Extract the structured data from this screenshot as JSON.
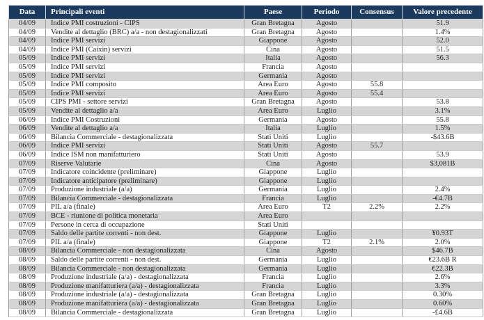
{
  "table": {
    "headers": [
      "Data",
      "Principali eventi",
      "Paese",
      "Periodo",
      "Consensus",
      "Valore precedente"
    ],
    "rows": [
      [
        "04/09",
        "Indice PMI costruzioni - CIPS",
        "Gran Bretagna",
        "Agosto",
        "",
        "51.9"
      ],
      [
        "04/09",
        "Vendite al dettaglio (BRC) a/a - non destagionalizzati",
        "Gran Bretagna",
        "Agosto",
        "",
        "1.4%"
      ],
      [
        "04/09",
        "Indice PMI servizi",
        "Giappone",
        "Agosto",
        "",
        "52.0"
      ],
      [
        "04/09",
        "Indice PMI (Caixin) servizi",
        "Cina",
        "Agosto",
        "",
        "51.5"
      ],
      [
        "05/09",
        "Indice PMI servizi",
        "Italia",
        "Agosto",
        "",
        "56.3"
      ],
      [
        "05/09",
        "Indice PMI servizi",
        "Francia",
        "Agosto",
        "",
        ""
      ],
      [
        "05/09",
        "Indice PMI servizi",
        "Germania",
        "Agosto",
        "",
        ""
      ],
      [
        "05/09",
        "Indice PMI composito",
        "Area Euro",
        "Agosto",
        "55.8",
        ""
      ],
      [
        "05/09",
        "Indice PMI servizi",
        "Area Euro",
        "Agosto",
        "55.4",
        ""
      ],
      [
        "05/09",
        "CIPS PMI - settore servizi",
        "Gran Bretagna",
        "Agosto",
        "",
        "53.8"
      ],
      [
        "05/09",
        "Vendite al dettaglio a/a",
        "Area Euro",
        "Luglio",
        "",
        "3.1%"
      ],
      [
        "06/09",
        "Indice PMI Costruzioni",
        "Germania",
        "Agosto",
        "",
        "55.8"
      ],
      [
        "06/09",
        "Vendite al dettaglio a/a",
        "Italia",
        "Luglio",
        "",
        "1.5%"
      ],
      [
        "06/09",
        "Bilancia Commerciale - destagionalizzata",
        "Stati Uniti",
        "Luglio",
        "",
        "-$43.6B"
      ],
      [
        "06/09",
        "Indice PMI servizi",
        "Stati Uniti",
        "Agosto",
        "55.7",
        ""
      ],
      [
        "06/09",
        "Indice ISM non manifatturiero",
        "Stati Uniti",
        "Agosto",
        "",
        "53.9"
      ],
      [
        "07/09",
        "Riserve Valutarie",
        "Cina",
        "Agosto",
        "",
        "$3,081B"
      ],
      [
        "07/09",
        "Indicatore coincidente (preliminare)",
        "Giappone",
        "Luglio",
        "",
        ""
      ],
      [
        "07/09",
        "Indicatore anticipatore (preliminare)",
        "Giappone",
        "Luglio",
        "",
        ""
      ],
      [
        "07/09",
        "Produzione industriale (a/a)",
        "Germania",
        "Luglio",
        "",
        "2.4%"
      ],
      [
        "07/09",
        "Bilancia Commerciale - destagionalizzata",
        "Francia",
        "Luglio",
        "",
        "-€4.7B"
      ],
      [
        "07/09",
        "PIL a/a (finale)",
        "Area Euro",
        "T2",
        "2.2%",
        "2.2%"
      ],
      [
        "07/09",
        "BCE - riunione di politica monetaria",
        "Area Euro",
        "",
        "",
        ""
      ],
      [
        "07/09",
        "Persone in cerca di occupazione",
        "Stati Uniti",
        "",
        "",
        ""
      ],
      [
        "07/09",
        "Saldo delle partite correnti - non dest.",
        "Giappone",
        "Luglio",
        "",
        "¥0.93T"
      ],
      [
        "07/09",
        "PIL a/a (finale)",
        "Giappone",
        "T2",
        "2.1%",
        "2.0%"
      ],
      [
        "08/09",
        "Bilancia Commerciale - non destagionalizzata",
        "Cina",
        "Agosto",
        "",
        "$46.7B"
      ],
      [
        "08/09",
        "Saldo delle partite correnti - non dest.",
        "Germania",
        "Luglio",
        "",
        "€23.6B R"
      ],
      [
        "08/09",
        "Bilancia Commerciale - non destagionalizzata",
        "Germania",
        "Luglio",
        "",
        "€22.3B"
      ],
      [
        "08/09",
        "Produzione industriale (a/a) - destagionalizzata",
        "Francia",
        "Luglio",
        "",
        "2.6%"
      ],
      [
        "08/09",
        "Produzione manifatturiera (a/a) - destagionalizzata",
        "Francia",
        "Luglio",
        "",
        "3.3%"
      ],
      [
        "08/09",
        "Produzione industriale (a/a) - destagionalizzata",
        "Gran Bretagna",
        "Luglio",
        "",
        "0.30%"
      ],
      [
        "08/09",
        "Produzione manifatturiera (a/a) - destagionalizzata",
        "Gran Bretagna",
        "Luglio",
        "",
        "0.60%"
      ],
      [
        "08/09",
        "Bilancia Commerciale - destagionalizzata",
        "Gran Bretagna",
        "Luglio",
        "",
        "-£4.6B"
      ]
    ]
  },
  "colors": {
    "header_bg": "#1c3a5e",
    "header_text": "#ffffff",
    "row_alt_bg": "#d5d5d5",
    "row_bg": "#ffffff",
    "body_text": "#1c1c1c"
  }
}
